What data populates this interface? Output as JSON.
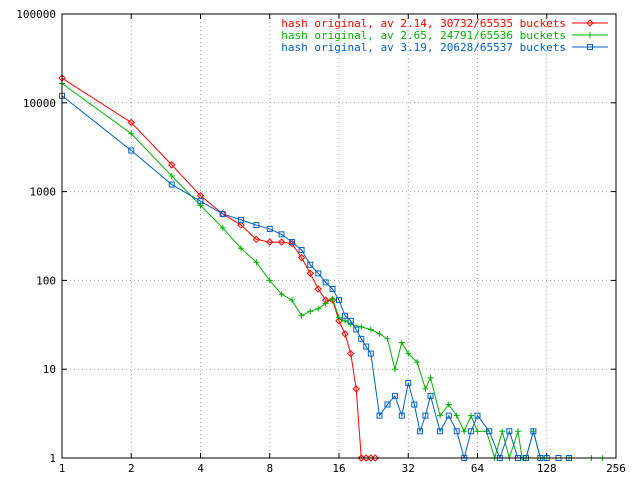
{
  "chart_data": {
    "type": "line",
    "title": "",
    "xlabel": "",
    "ylabel": "",
    "x_scale": "log2",
    "y_scale": "log10",
    "xlim": [
      1,
      256
    ],
    "ylim": [
      1,
      100000
    ],
    "grid": true,
    "legend_position": "top-right",
    "x_ticks": [
      {
        "value": 1,
        "label": "1"
      },
      {
        "value": 2,
        "label": "2"
      },
      {
        "value": 4,
        "label": "4"
      },
      {
        "value": 8,
        "label": "8"
      },
      {
        "value": 16,
        "label": "16"
      },
      {
        "value": 32,
        "label": "32"
      },
      {
        "value": 64,
        "label": "64"
      },
      {
        "value": 128,
        "label": "128"
      },
      {
        "value": 256,
        "label": "256"
      }
    ],
    "y_ticks": [
      {
        "value": 1,
        "label": "1"
      },
      {
        "value": 10,
        "label": "10"
      },
      {
        "value": 100,
        "label": "100"
      },
      {
        "value": 1000,
        "label": "1000"
      },
      {
        "value": 10000,
        "label": "10000"
      },
      {
        "value": 100000,
        "label": "100000"
      }
    ],
    "series": [
      {
        "name": "hash original, av 2.14, 30732/65535 buckets",
        "color": "#ff0000",
        "marker": "diamond",
        "x": [
          1,
          2,
          3,
          4,
          5,
          6,
          7,
          8,
          9,
          10,
          11,
          12,
          13,
          14,
          15,
          16,
          17,
          18,
          19,
          20,
          21,
          22,
          23
        ],
        "y": [
          19000,
          6000,
          2000,
          900,
          560,
          420,
          290,
          270,
          270,
          260,
          180,
          120,
          80,
          60,
          60,
          35,
          25,
          15,
          6,
          1,
          1,
          1,
          1
        ]
      },
      {
        "name": "hash original, av 2.65, 24791/65536 buckets",
        "color": "#00b000",
        "marker": "plus",
        "x": [
          1,
          2,
          3,
          4,
          5,
          6,
          7,
          8,
          9,
          10,
          11,
          12,
          13,
          14,
          15,
          16,
          17,
          18,
          20,
          22,
          24,
          26,
          28,
          30,
          32,
          35,
          38,
          40,
          44,
          48,
          52,
          56,
          60,
          64,
          70,
          76,
          82,
          88,
          96,
          100,
          104,
          112,
          120,
          128,
          160,
          200,
          224
        ],
        "y": [
          16500,
          4500,
          1500,
          700,
          390,
          230,
          160,
          100,
          70,
          60,
          40,
          45,
          48,
          55,
          62,
          38,
          35,
          32,
          30,
          28,
          25,
          22,
          10,
          20,
          15,
          12,
          6,
          8,
          3,
          4,
          3,
          2,
          3,
          2,
          2,
          1,
          2,
          1,
          2,
          1,
          1,
          2,
          1,
          1,
          1,
          1,
          1
        ]
      },
      {
        "name": "hash original, av 3.19, 20628/65537 buckets",
        "color": "#0060c0",
        "marker": "square",
        "x": [
          1,
          2,
          3,
          4,
          5,
          6,
          7,
          8,
          9,
          10,
          11,
          12,
          13,
          14,
          15,
          16,
          17,
          18,
          19,
          20,
          21,
          22,
          24,
          26,
          28,
          30,
          32,
          34,
          36,
          38,
          40,
          44,
          48,
          52,
          56,
          60,
          64,
          72,
          80,
          88,
          96,
          104,
          112,
          120,
          128,
          144,
          160
        ],
        "y": [
          12000,
          2900,
          1200,
          780,
          560,
          480,
          420,
          380,
          330,
          270,
          220,
          150,
          120,
          95,
          80,
          60,
          40,
          35,
          28,
          22,
          18,
          15,
          3,
          4,
          5,
          3,
          7,
          4,
          2,
          3,
          5,
          2,
          3,
          2,
          1,
          2,
          3,
          2,
          1,
          2,
          1,
          1,
          2,
          1,
          1,
          1,
          1
        ]
      }
    ]
  }
}
